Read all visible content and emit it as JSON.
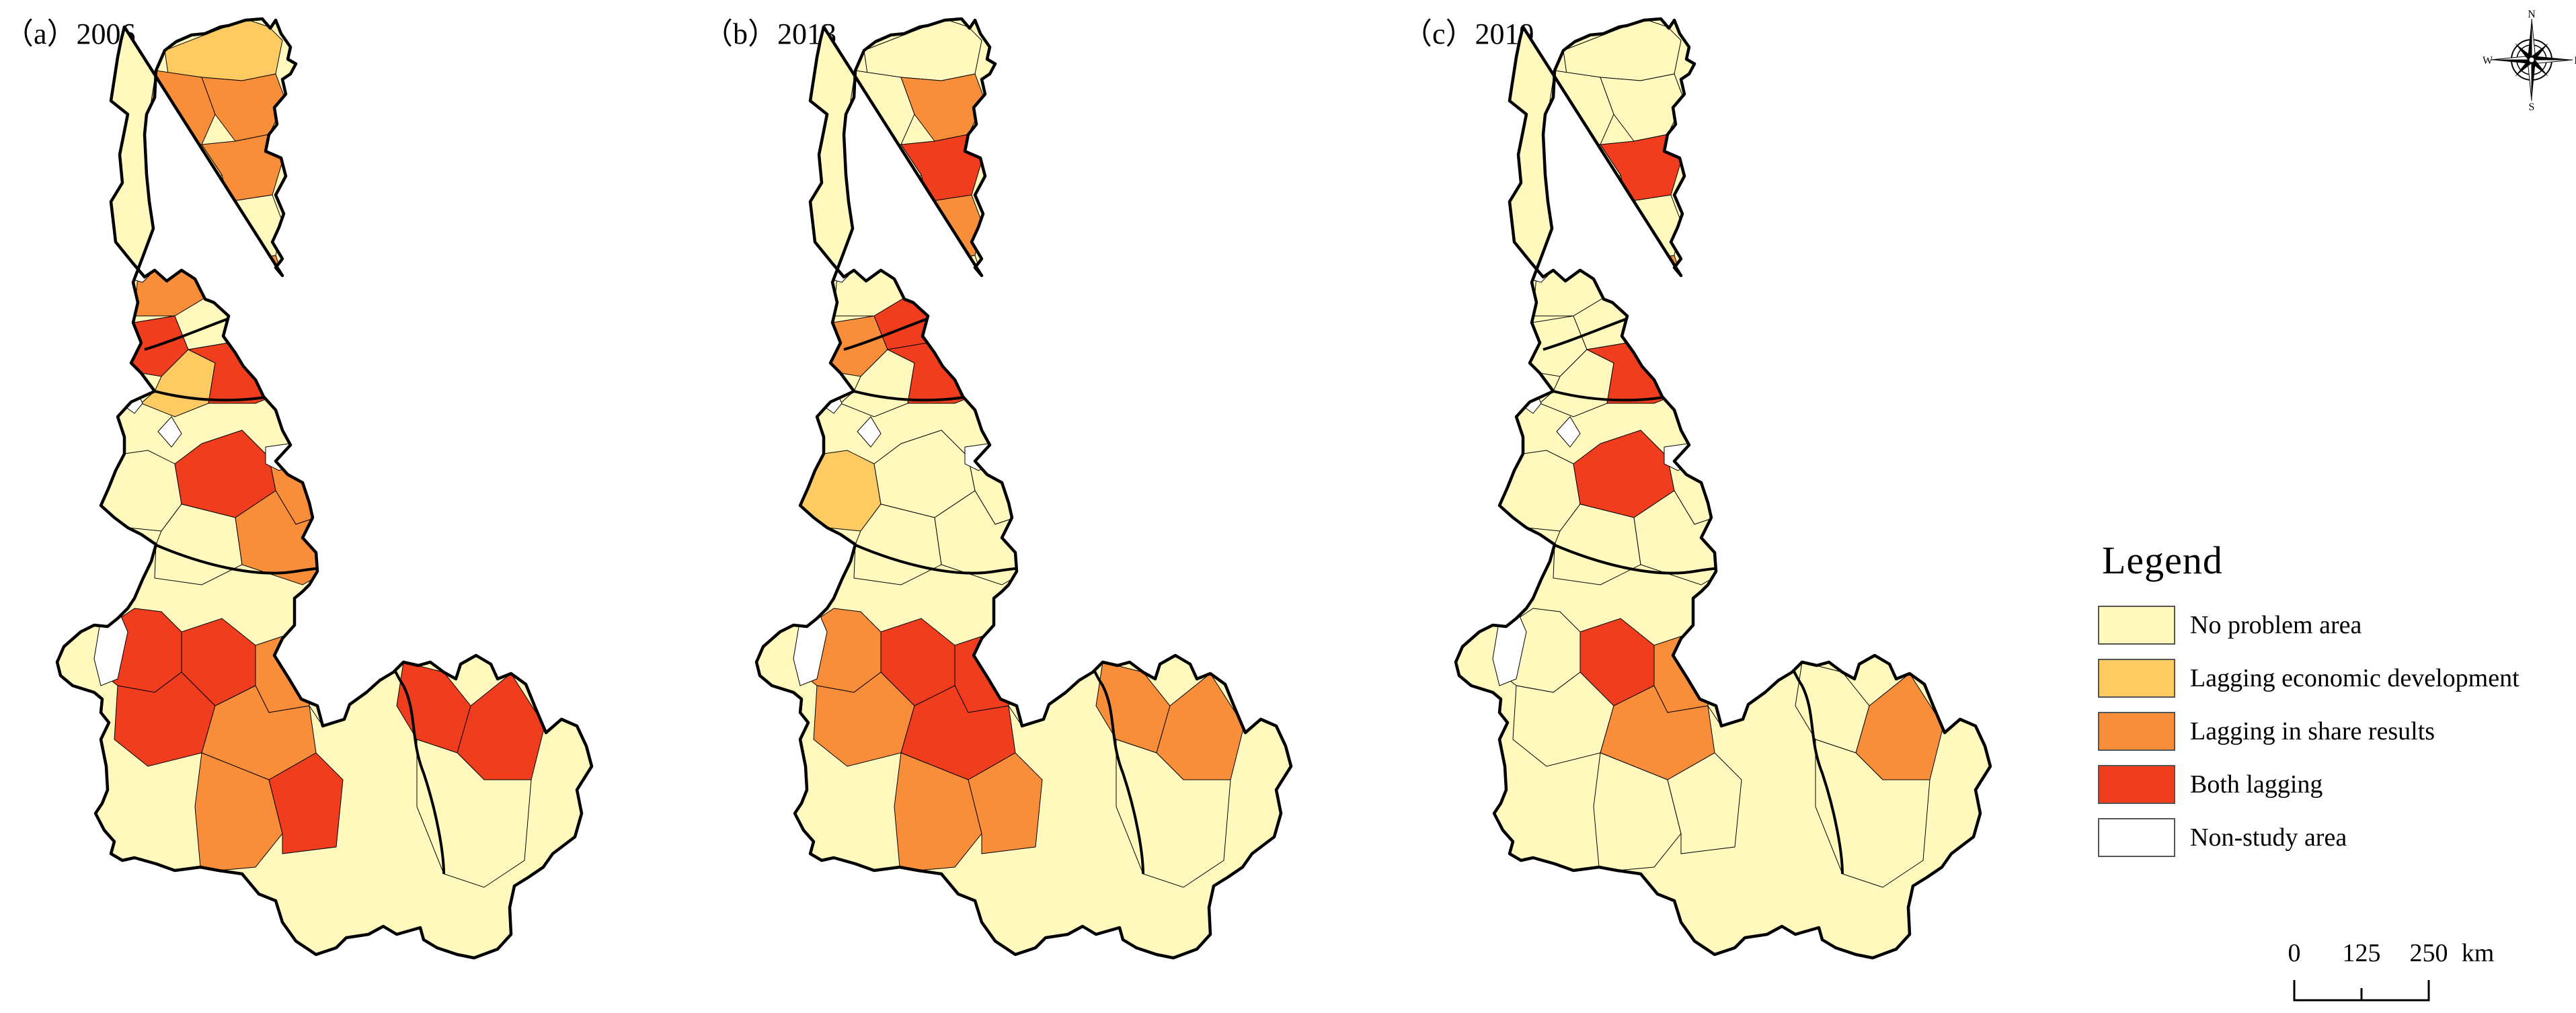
{
  "panels": [
    {
      "label": "（a）2006",
      "fills": [
        "l",
        "o",
        "o",
        "l",
        "o",
        "y",
        "y",
        "o",
        "o",
        "r",
        "r",
        "r",
        "y",
        "y",
        "o",
        "l",
        "r",
        "r",
        "l",
        "y",
        "y",
        "l",
        "y",
        "o",
        "o",
        "y",
        "r",
        "o",
        "y",
        "y",
        "y",
        "o",
        "y",
        "y",
        "r",
        "r",
        "o",
        "y",
        "r",
        "o",
        "o",
        "r",
        "r",
        "r",
        "y"
      ]
    },
    {
      "label": "（b）2013",
      "fills": [
        "y",
        "y",
        "o",
        "y",
        "r",
        "y",
        "o",
        "y",
        "y",
        "l",
        "y",
        "o",
        "r",
        "y",
        "l",
        "y",
        "r",
        "r",
        "y",
        "l",
        "o",
        "y",
        "y",
        "l",
        "y",
        "l",
        "y",
        "y",
        "y",
        "o",
        "y",
        "y",
        "y",
        "y",
        "o",
        "r",
        "r",
        "y",
        "o",
        "r",
        "o",
        "o",
        "o",
        "o",
        "y"
      ]
    },
    {
      "label": "（c）2019",
      "fills": [
        "y",
        "y",
        "y",
        "y",
        "r",
        "r",
        "y",
        "y",
        "o",
        "l",
        "r",
        "y",
        "y",
        "y",
        "y",
        "y",
        "r",
        "r",
        "y",
        "y",
        "y",
        "r",
        "y",
        "y",
        "y",
        "y",
        "r",
        "y",
        "y",
        "o",
        "y",
        "y",
        "y",
        "o",
        "y",
        "r",
        "o",
        "y",
        "y",
        "o",
        "y",
        "y",
        "y",
        "o",
        "y"
      ]
    }
  ],
  "legend": {
    "title": "Legend",
    "items": [
      {
        "key": "y",
        "label": "No problem area",
        "color": "#FFF9BE"
      },
      {
        "key": "l",
        "label": "Lagging economic development",
        "color": "#FDCB62"
      },
      {
        "key": "o",
        "label": "Lagging in share results",
        "color": "#F98E3A"
      },
      {
        "key": "r",
        "label": "Both lagging",
        "color": "#F03D1E"
      },
      {
        "key": "w",
        "label": "Non-study area",
        "color": "#FFFFFF"
      }
    ]
  },
  "compass": {
    "n": "N",
    "s": "S",
    "e": "E",
    "w": "W"
  },
  "scale": {
    "ticks": [
      "0",
      "125",
      "250"
    ],
    "unit": "km"
  }
}
